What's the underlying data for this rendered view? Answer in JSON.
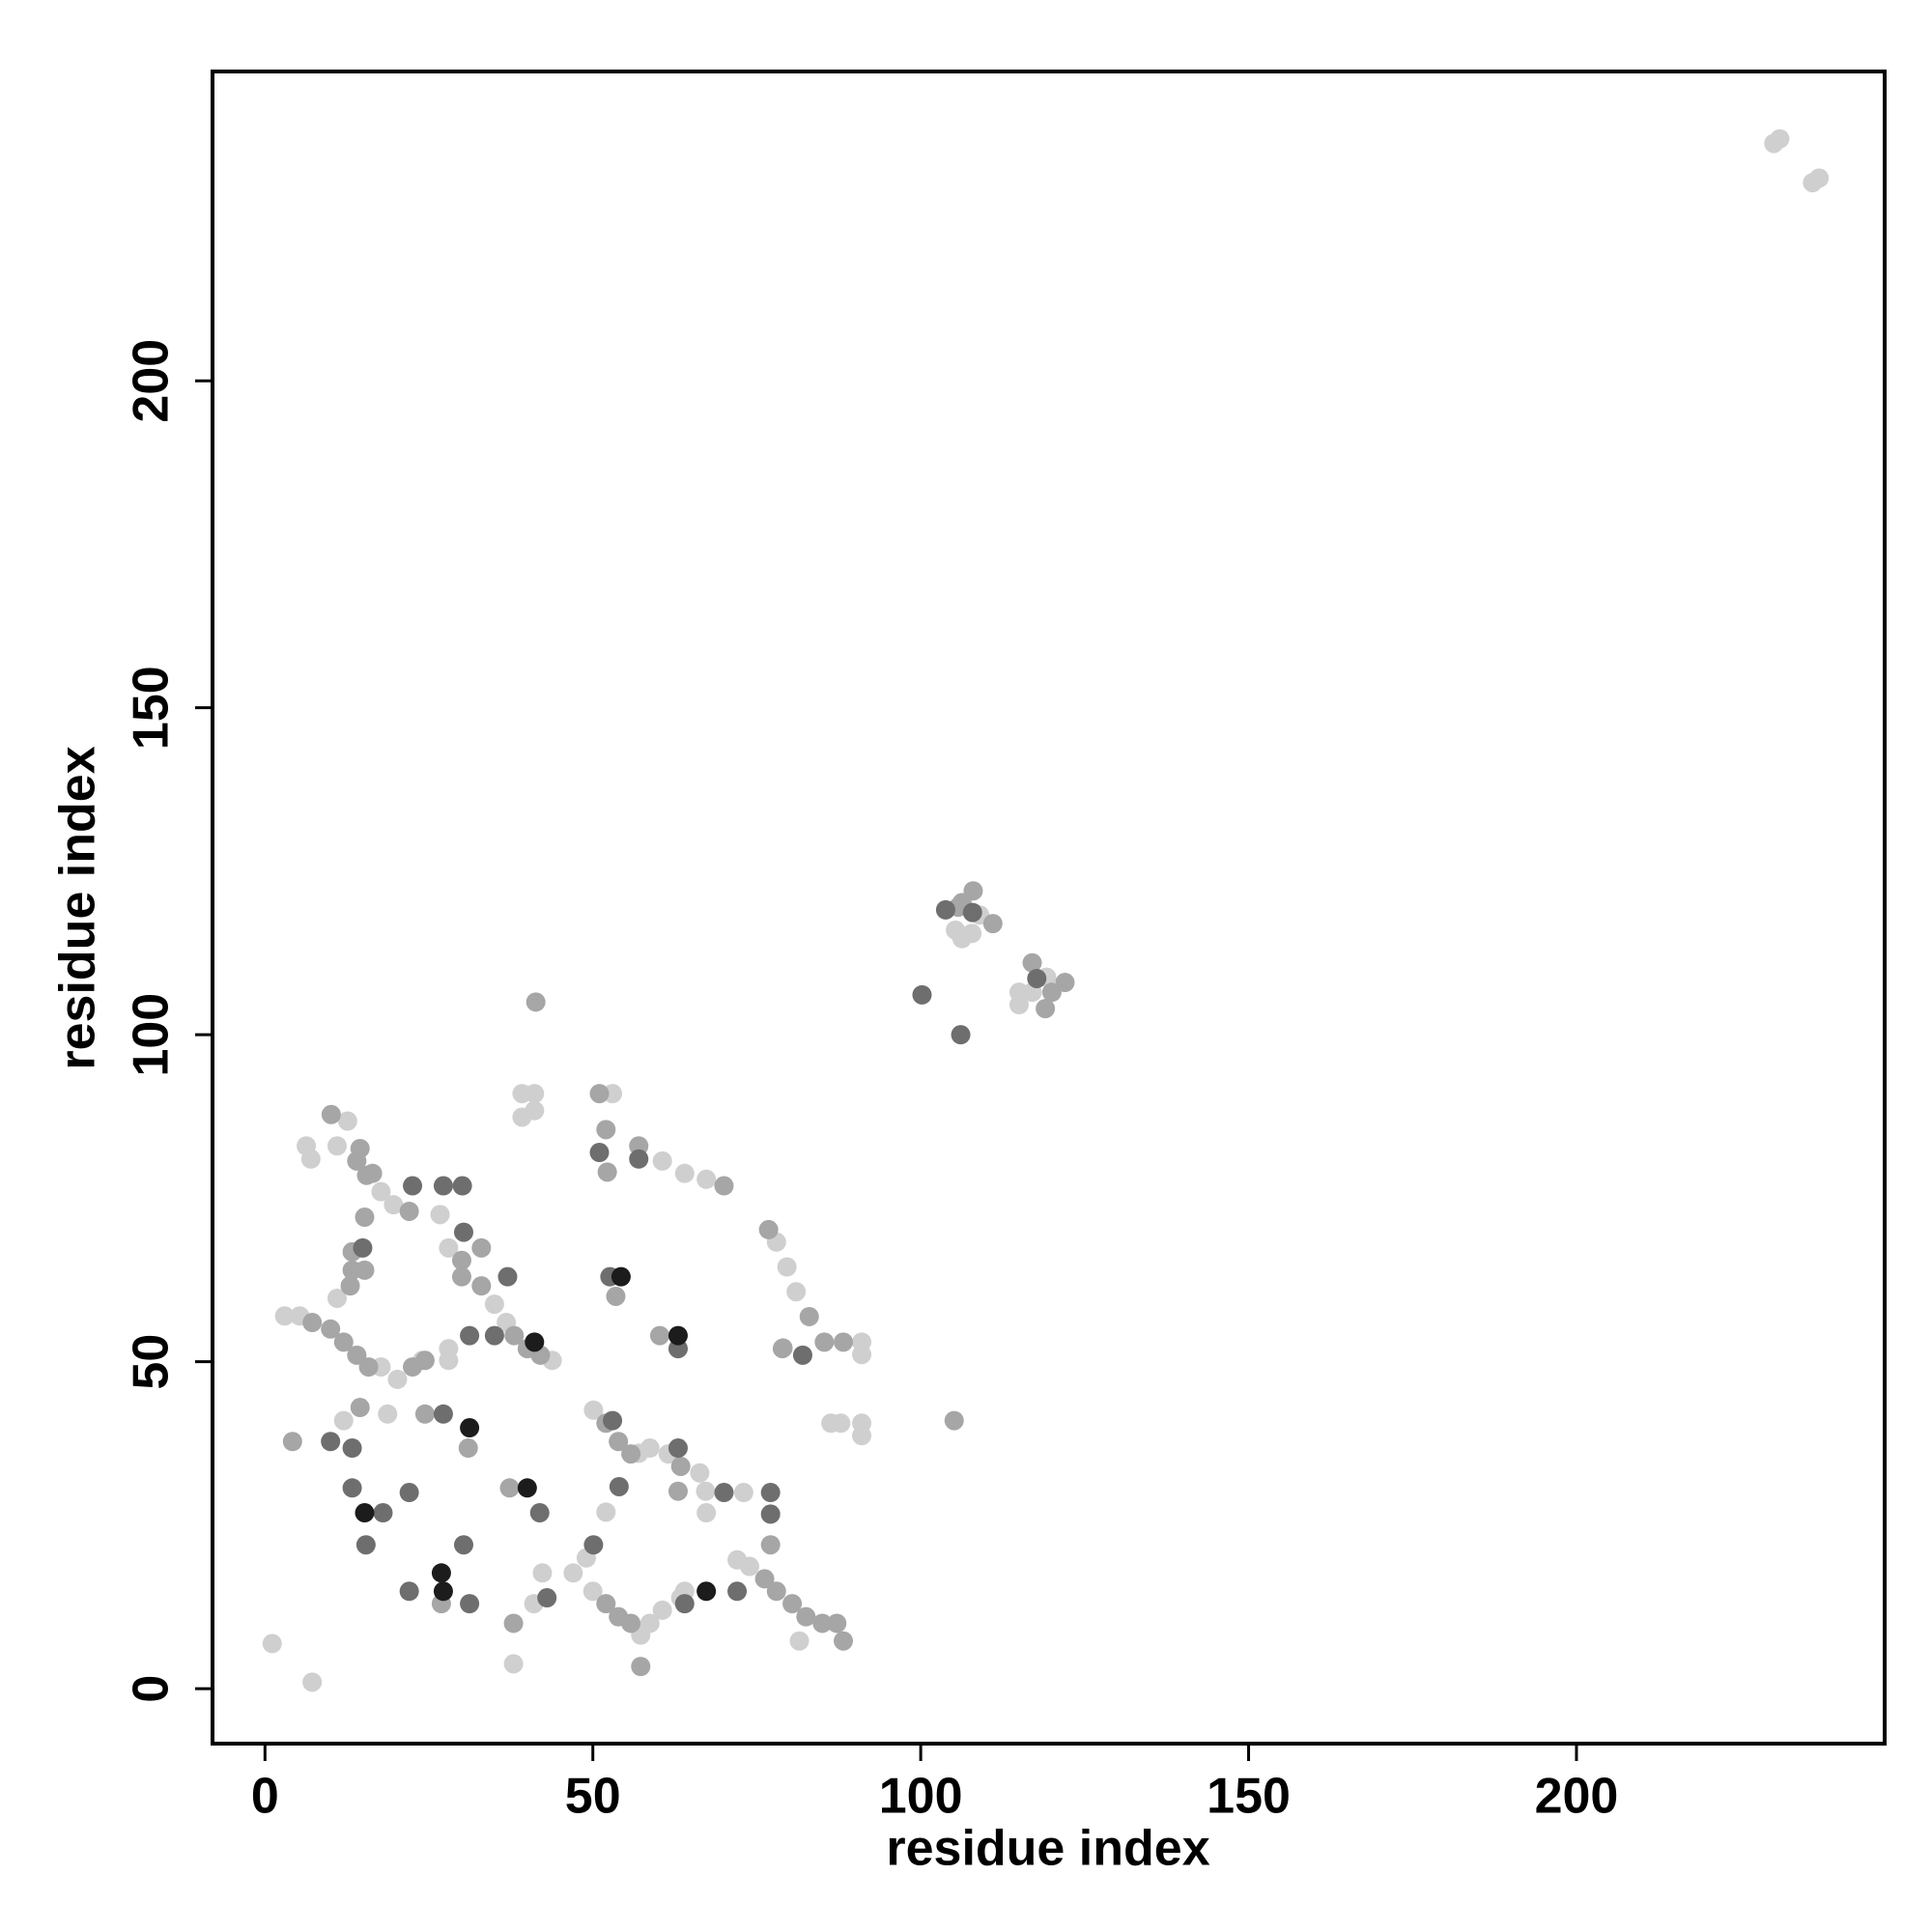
{
  "chart_data": {
    "type": "scatter",
    "x_label": "residue index",
    "y_label": "residue index",
    "xlim": [
      -8,
      247
    ],
    "ylim": [
      -8.4,
      247.3
    ],
    "xticks": [
      0,
      50,
      100,
      150,
      200
    ],
    "yticks": [
      0,
      50,
      100,
      150,
      200
    ],
    "grid": false,
    "series": [
      {
        "color": "#cfcfcf",
        "x": [
          230.1,
          231,
          236,
          237,
          109,
          106.3,
          107.8,
          105.3,
          119.2,
          115,
          115,
          117,
          6.3,
          7,
          11,
          12.6,
          17.7,
          19.6,
          3,
          5.3,
          11,
          17.7,
          20.2,
          24,
          28,
          35,
          36.8,
          43.8,
          50.1,
          58.7,
          61.5,
          66.3,
          67.2,
          50,
          57.3,
          58.7,
          60.6,
          63.4,
          72,
          73.9,
          81.5,
          39.2,
          41.1,
          39.2,
          41.1,
          53,
          60.6,
          64,
          67.3,
          78,
          79.6,
          81,
          91,
          91,
          86.3,
          87.8,
          91,
          91,
          1.1,
          7.2,
          26.7,
          37.9,
          41,
          42.3,
          64,
          73,
          67.3,
          18.7,
          12,
          28,
          28,
          47,
          49,
          52,
          57
        ],
        "values": [
          236.3,
          237,
          230.3,
          231,
          118.3,
          114.7,
          115.5,
          116,
          108.8,
          106.5,
          104.6,
          106.5,
          83,
          81,
          83,
          86.8,
          76,
          74,
          57,
          57,
          59.7,
          49.2,
          47.3,
          50.2,
          67.4,
          58.8,
          56,
          50.2,
          42.6,
          36.8,
          35.9,
          33,
          30.2,
          14.9,
          8.2,
          10,
          12,
          13.9,
          19.7,
          18.7,
          7.3,
          91,
          91,
          87.4,
          88.4,
          91,
          80.7,
          78.8,
          77.9,
          68.3,
          64.5,
          60.7,
          53,
          51.1,
          40.6,
          40.6,
          40.6,
          38.7,
          6.9,
          1,
          72.5,
          3.8,
          13,
          17.7,
          14.9,
          30,
          26.9,
          42,
          41,
          52,
          50.2,
          17.7,
          20,
          27,
          36
        ]
      },
      {
        "color": "#a6a6a6",
        "x": [
          105.7,
          106.3,
          108,
          111,
          117,
          120,
          122,
          119,
          105.1,
          41.3,
          10.1,
          14.5,
          16.4,
          22,
          14,
          15.5,
          7.2,
          10,
          12,
          14,
          15.8,
          22.5,
          13,
          30,
          33,
          38,
          40,
          42,
          52,
          53.9,
          55.8,
          63.4,
          52,
          53.9,
          55.8,
          57.3,
          76.2,
          78,
          80.4,
          82.5,
          85,
          87.2,
          88.2,
          51,
          52,
          57,
          70,
          76.8,
          83,
          85.3,
          88.2,
          79,
          78.9,
          4.2,
          26.9,
          24.4,
          31,
          37.3,
          52.2,
          53.5,
          60.2,
          63,
          15.2,
          13.3,
          13.3,
          15.2,
          14.5,
          33,
          30,
          24.4,
          77.1,
          37.9
        ],
        "values": [
          119.5,
          120.2,
          122,
          117,
          111,
          106.5,
          108,
          104,
          41,
          105,
          87.8,
          82.6,
          78.8,
          73,
          80.7,
          78.5,
          56,
          55,
          53,
          51,
          49.2,
          49.2,
          61.6,
          65.5,
          61.6,
          54,
          52,
          51,
          40.6,
          37.8,
          35.9,
          34,
          13,
          11,
          10,
          3.4,
          16.8,
          14.9,
          13,
          11,
          10,
          10,
          7.3,
          91,
          85.5,
          83,
          76.9,
          70.2,
          56.9,
          53,
          53,
          52.1,
          52,
          37.8,
          13,
          42,
          36.8,
          30.7,
          79,
          60,
          54,
          30.2,
          64,
          64,
          66.8,
          72.1,
          43,
          67.4,
          63,
          50.2,
          22,
          10
        ]
      },
      {
        "color": "#6e6e6e",
        "x": [
          103.8,
          107.9,
          100.2,
          106.1,
          117.7,
          10,
          13.3,
          18,
          15.4,
          22,
          22,
          31.2,
          30.3,
          27.2,
          31.2,
          30.3,
          30.1,
          27.2,
          22.5,
          37,
          41.9,
          43,
          51,
          52.6,
          54,
          53,
          50.1,
          63,
          63,
          70,
          77.1,
          77.1,
          64,
          72,
          82,
          57,
          14.9,
          13.3,
          35
        ],
        "values": [
          119.1,
          118.7,
          106.1,
          100,
          108.6,
          37.8,
          30.7,
          26.9,
          22,
          30,
          14.9,
          13,
          22,
          42,
          54,
          69.8,
          76.9,
          76.9,
          76.9,
          63,
          26.9,
          13.9,
          82,
          63,
          30.9,
          41,
          22,
          52,
          36.8,
          30,
          30,
          26.7,
          13,
          14.9,
          51,
          81,
          67.4,
          36.8,
          54
        ]
      },
      {
        "color": "#1c1c1c",
        "x": [
          15.2,
          26.9,
          27.2,
          31.2,
          41.1,
          40,
          54.3,
          63,
          67.3
        ],
        "values": [
          26.9,
          17.7,
          14.9,
          39.9,
          53,
          30.7,
          63,
          54,
          14.9
        ]
      }
    ]
  }
}
